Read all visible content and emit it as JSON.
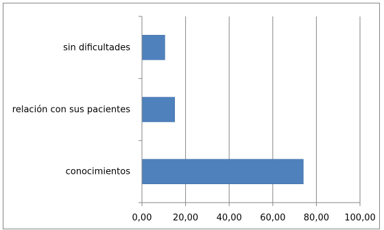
{
  "chart_data": {
    "type": "bar",
    "orientation": "horizontal",
    "title": "",
    "xlabel": "",
    "ylabel": "",
    "categories": [
      "conocimientos",
      "relación con sus pacientes",
      "sin dificultades"
    ],
    "values": [
      74.0,
      15.0,
      10.5
    ],
    "xlim": [
      0,
      100
    ],
    "xticks": [
      "0,00",
      "20,00",
      "40,00",
      "60,00",
      "80,00",
      "100,00"
    ],
    "grid": "vertical",
    "legend": "none",
    "colors": {
      "bar": "#4f81bd",
      "bar_border": "#3d6da6",
      "grid": "#868686",
      "axis": "#868686",
      "frame": "#868686"
    }
  }
}
